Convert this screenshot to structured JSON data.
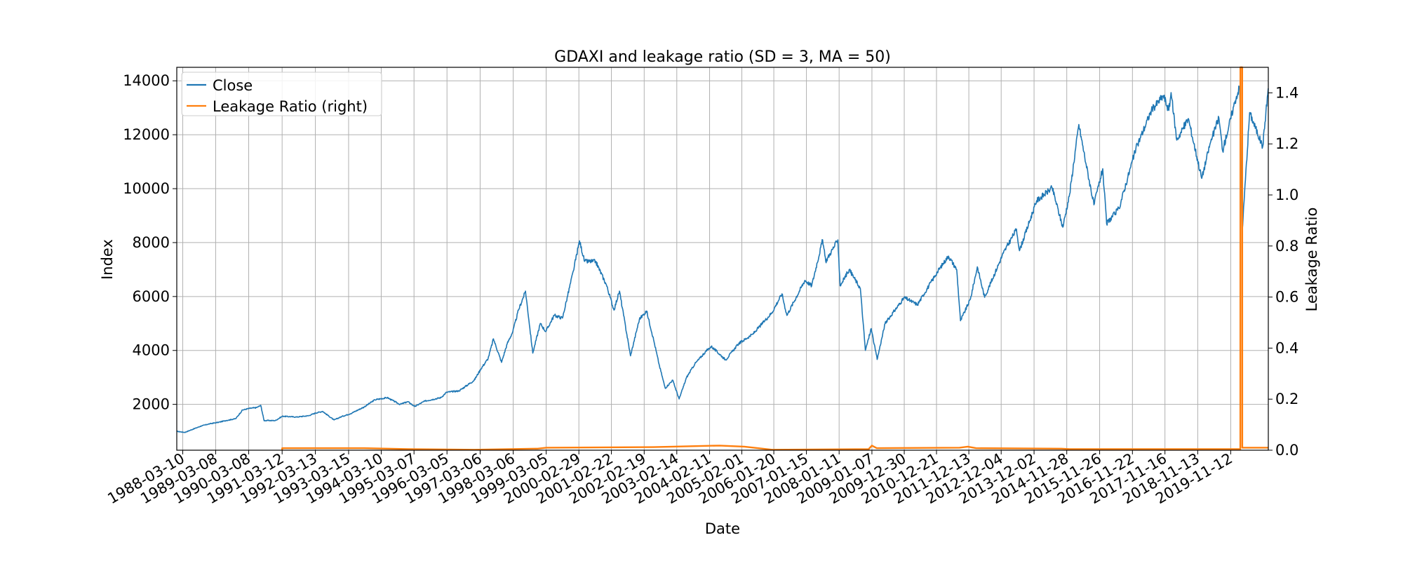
{
  "chart_data": {
    "type": "line",
    "title": "GDAXI and leakage ratio (SD = 3, MA = 50)",
    "xlabel": "Date",
    "ylabel": "Index",
    "ylabel_right": "Leakage Ratio",
    "x_range": [
      "1988-01-04",
      "2020-12-31"
    ],
    "ylim": [
      300,
      14500
    ],
    "ylim_right": [
      0.0,
      1.5
    ],
    "x_ticks": [
      "1988-03-10",
      "1989-03-08",
      "1990-03-08",
      "1991-03-12",
      "1992-03-13",
      "1993-03-15",
      "1994-03-10",
      "1995-03-07",
      "1996-03-05",
      "1997-03-06",
      "1998-03-06",
      "1999-03-05",
      "2000-02-29",
      "2001-02-22",
      "2002-02-19",
      "2003-02-14",
      "2004-02-11",
      "2005-02-01",
      "2006-01-20",
      "2007-01-15",
      "2008-01-11",
      "2009-01-07",
      "2009-12-30",
      "2010-12-21",
      "2011-12-13",
      "2012-12-04",
      "2013-12-02",
      "2014-11-28",
      "2015-11-26",
      "2016-11-22",
      "2017-11-16",
      "2018-11-13",
      "2019-11-12"
    ],
    "y_ticks": [
      2000,
      4000,
      6000,
      8000,
      10000,
      12000,
      14000
    ],
    "y_ticks_right": [
      0.0,
      0.2,
      0.4,
      0.6,
      0.8,
      1.0,
      1.2,
      1.4
    ],
    "grid": true,
    "legend_position": "top-left",
    "series": [
      {
        "name": "Close",
        "color": "#1f77b4",
        "axis": "left",
        "points": [
          [
            "1988-01-04",
            1000
          ],
          [
            "1988-04-01",
            960
          ],
          [
            "1988-07-01",
            1080
          ],
          [
            "1988-10-01",
            1200
          ],
          [
            "1989-01-02",
            1280
          ],
          [
            "1989-04-01",
            1330
          ],
          [
            "1989-07-01",
            1400
          ],
          [
            "1989-10-16",
            1470
          ],
          [
            "1989-12-29",
            1790
          ],
          [
            "1990-03-15",
            1850
          ],
          [
            "1990-06-01",
            1880
          ],
          [
            "1990-07-20",
            1960
          ],
          [
            "1990-08-24",
            1400
          ],
          [
            "1990-12-28",
            1400
          ],
          [
            "1991-03-15",
            1560
          ],
          [
            "1991-08-19",
            1530
          ],
          [
            "1991-12-30",
            1580
          ],
          [
            "1992-03-16",
            1680
          ],
          [
            "1992-06-01",
            1740
          ],
          [
            "1992-10-05",
            1420
          ],
          [
            "1992-12-30",
            1550
          ],
          [
            "1993-04-01",
            1650
          ],
          [
            "1993-09-01",
            1900
          ],
          [
            "1993-12-30",
            2170
          ],
          [
            "1994-05-16",
            2250
          ],
          [
            "1994-10-03",
            2000
          ],
          [
            "1994-12-30",
            2100
          ],
          [
            "1995-03-15",
            1920
          ],
          [
            "1995-07-03",
            2120
          ],
          [
            "1995-12-29",
            2250
          ],
          [
            "1996-03-01",
            2450
          ],
          [
            "1996-07-15",
            2500
          ],
          [
            "1996-12-30",
            2890
          ],
          [
            "1997-03-11",
            3300
          ],
          [
            "1997-06-02",
            3700
          ],
          [
            "1997-07-31",
            4430
          ],
          [
            "1997-10-28",
            3560
          ],
          [
            "1997-12-30",
            4250
          ],
          [
            "1998-03-02",
            4700
          ],
          [
            "1998-05-04",
            5500
          ],
          [
            "1998-07-20",
            6200
          ],
          [
            "1998-10-08",
            3900
          ],
          [
            "1998-12-30",
            5000
          ],
          [
            "1999-03-01",
            4700
          ],
          [
            "1999-06-01",
            5300
          ],
          [
            "1999-09-01",
            5200
          ],
          [
            "1999-12-30",
            6950
          ],
          [
            "2000-03-07",
            8065
          ],
          [
            "2000-05-02",
            7300
          ],
          [
            "2000-09-01",
            7300
          ],
          [
            "2000-12-29",
            6430
          ],
          [
            "2001-03-22",
            5500
          ],
          [
            "2001-05-22",
            6200
          ],
          [
            "2001-09-21",
            3800
          ],
          [
            "2001-12-28",
            5160
          ],
          [
            "2002-03-18",
            5460
          ],
          [
            "2002-06-03",
            4400
          ],
          [
            "2002-08-01",
            3500
          ],
          [
            "2002-10-09",
            2600
          ],
          [
            "2002-12-30",
            2900
          ],
          [
            "2003-03-12",
            2200
          ],
          [
            "2003-06-02",
            3000
          ],
          [
            "2003-09-01",
            3500
          ],
          [
            "2003-12-30",
            3960
          ],
          [
            "2004-03-01",
            4150
          ],
          [
            "2004-08-06",
            3650
          ],
          [
            "2004-12-30",
            4260
          ],
          [
            "2005-06-01",
            4600
          ],
          [
            "2005-12-30",
            5400
          ],
          [
            "2006-04-20",
            6100
          ],
          [
            "2006-06-13",
            5300
          ],
          [
            "2006-12-29",
            6600
          ],
          [
            "2007-03-14",
            6400
          ],
          [
            "2007-07-13",
            8100
          ],
          [
            "2007-08-16",
            7300
          ],
          [
            "2007-12-28",
            8100
          ],
          [
            "2008-01-22",
            6400
          ],
          [
            "2008-05-01",
            7000
          ],
          [
            "2008-09-01",
            6300
          ],
          [
            "2008-10-27",
            4000
          ],
          [
            "2008-12-30",
            4810
          ],
          [
            "2009-03-06",
            3666
          ],
          [
            "2009-06-01",
            5000
          ],
          [
            "2009-12-30",
            5960
          ],
          [
            "2010-05-25",
            5700
          ],
          [
            "2010-12-30",
            6910
          ],
          [
            "2011-05-02",
            7500
          ],
          [
            "2011-08-01",
            7000
          ],
          [
            "2011-09-12",
            5100
          ],
          [
            "2011-12-30",
            5900
          ],
          [
            "2012-03-16",
            7100
          ],
          [
            "2012-06-04",
            5970
          ],
          [
            "2012-12-28",
            7610
          ],
          [
            "2013-05-22",
            8500
          ],
          [
            "2013-06-24",
            7700
          ],
          [
            "2013-12-30",
            9550
          ],
          [
            "2014-06-20",
            10030
          ],
          [
            "2014-10-15",
            8570
          ],
          [
            "2014-12-30",
            9800
          ],
          [
            "2015-04-10",
            12380
          ],
          [
            "2015-06-30",
            10900
          ],
          [
            "2015-09-24",
            9400
          ],
          [
            "2015-12-30",
            10740
          ],
          [
            "2016-02-11",
            8700
          ],
          [
            "2016-06-27",
            9270
          ],
          [
            "2016-12-30",
            11480
          ],
          [
            "2017-06-19",
            12900
          ],
          [
            "2017-10-30",
            13450
          ],
          [
            "2017-12-29",
            12900
          ],
          [
            "2018-01-23",
            13560
          ],
          [
            "2018-03-26",
            11800
          ],
          [
            "2018-08-01",
            12600
          ],
          [
            "2018-12-27",
            10380
          ],
          [
            "2019-04-01",
            11700
          ],
          [
            "2019-07-04",
            12630
          ],
          [
            "2019-08-15",
            11400
          ],
          [
            "2019-12-30",
            13250
          ],
          [
            "2020-02-19",
            13790
          ],
          [
            "2020-03-18",
            8440
          ],
          [
            "2020-06-08",
            12820
          ],
          [
            "2020-10-30",
            11560
          ],
          [
            "2020-12-30",
            13720
          ]
        ]
      },
      {
        "name": "Leakage Ratio (right)",
        "color": "#ff7f0e",
        "axis": "right",
        "points": [
          [
            "1991-03-12",
            0.0
          ],
          [
            "1991-03-13",
            0.008
          ],
          [
            "1993-09-01",
            0.008
          ],
          [
            "1995-01-01",
            0.004
          ],
          [
            "1997-01-01",
            0.002
          ],
          [
            "1998-12-01",
            0.006
          ],
          [
            "1999-03-05",
            0.01
          ],
          [
            "2002-06-01",
            0.012
          ],
          [
            "2003-01-01",
            0.014
          ],
          [
            "2004-06-01",
            0.018
          ],
          [
            "2005-03-01",
            0.014
          ],
          [
            "2006-01-01",
            0.002
          ],
          [
            "2008-12-01",
            0.004
          ],
          [
            "2009-01-07",
            0.018
          ],
          [
            "2009-03-01",
            0.008
          ],
          [
            "2011-09-01",
            0.01
          ],
          [
            "2011-12-01",
            0.014
          ],
          [
            "2012-03-01",
            0.008
          ],
          [
            "2014-10-01",
            0.006
          ],
          [
            "2015-01-01",
            0.004
          ],
          [
            "2020-02-26",
            0.004
          ],
          [
            "2020-02-27",
            1.5
          ],
          [
            "2020-03-18",
            1.5
          ],
          [
            "2020-03-19",
            0.01
          ],
          [
            "2020-12-30",
            0.01
          ]
        ]
      }
    ]
  }
}
